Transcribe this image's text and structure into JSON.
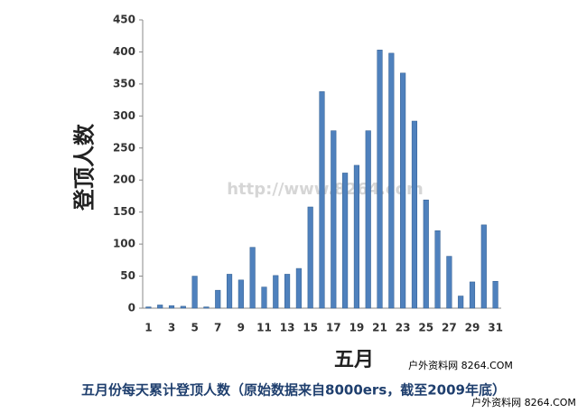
{
  "chart_data": {
    "type": "bar",
    "title": "五月份每天累计登顶人数（原始数据来自8000ers，截至2009年底）",
    "x_label": "五月",
    "y_label": "登顶人数",
    "annotations": [
      "http://www.8264.com",
      "户外资料网 8264.COM",
      "户外资料网 8264.COM"
    ],
    "categories": [
      "1",
      null,
      "3",
      null,
      "5",
      null,
      "7",
      null,
      "9",
      null,
      "11",
      null,
      "13",
      null,
      "15",
      null,
      "17",
      null,
      "19",
      null,
      "21",
      null,
      "23",
      null,
      "25",
      null,
      "27",
      null,
      "29",
      null,
      "31"
    ],
    "values": [
      2,
      5,
      4,
      3,
      50,
      2,
      28,
      53,
      44,
      95,
      33,
      51,
      53,
      62,
      158,
      338,
      277,
      211,
      223,
      277,
      403,
      398,
      367,
      292,
      169,
      121,
      81,
      19,
      41,
      130,
      42
    ],
    "color": "#4f81bd",
    "ylim": [
      0,
      450
    ],
    "yticks": [
      0,
      50,
      100,
      150,
      200,
      250,
      300,
      350,
      400,
      450
    ],
    "grid": false
  }
}
